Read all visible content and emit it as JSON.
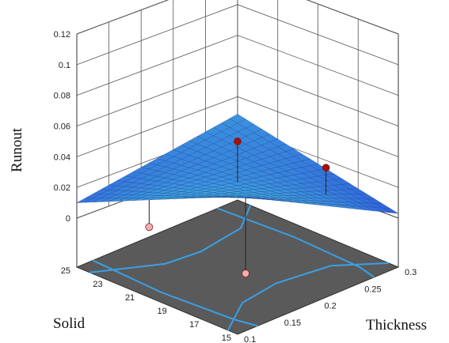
{
  "chart_data": {
    "type": "surface3d",
    "zlabel": "Runout",
    "xlabel": "Solid",
    "ylabel": "Thickness",
    "solid_ticks": [
      "25",
      "23",
      "21",
      "19",
      "17",
      "15"
    ],
    "thickness_ticks": [
      "0.1",
      "0.15",
      "0.2",
      "0.25",
      "0.3"
    ],
    "runout_ticks": [
      "0",
      "0.02",
      "0.04",
      "0.06",
      "0.08",
      "0.1",
      "0.12"
    ],
    "solid_range": [
      15,
      25
    ],
    "thickness_range": [
      0.1,
      0.3
    ],
    "runout_range": [
      0,
      0.12
    ],
    "surface_corners": {
      "solid15_thickness0.1": 0.058,
      "solid15_thickness0.3": 0.003,
      "solid25_thickness0.1": 0.01,
      "solid25_thickness0.3": 0.024
    },
    "design_points": [
      {
        "solid": 20,
        "thickness": 0.2,
        "runout": 0.05,
        "above_surface": true
      },
      {
        "solid": 17,
        "thickness": 0.25,
        "runout": 0.035,
        "above_surface": true
      },
      {
        "solid": 23,
        "thickness": 0.15,
        "runout": -0.008,
        "above_surface": false
      },
      {
        "solid": 17,
        "thickness": 0.15,
        "runout": -0.012,
        "above_surface": false
      }
    ],
    "surface_colors": {
      "low": "#2f5fdc",
      "high": "#4ee8e0"
    },
    "floor_color": "#5a5a5a",
    "contour_color": "#3aa0e6",
    "point_colors": {
      "above": "#a01010",
      "below": "#f0b0b0"
    }
  }
}
